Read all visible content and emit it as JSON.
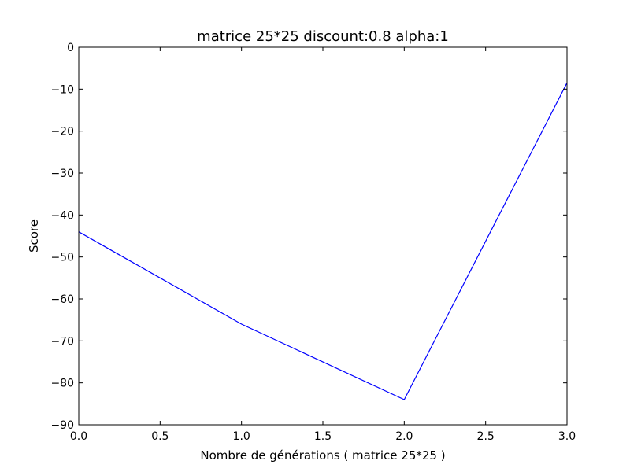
{
  "chart_data": {
    "type": "line",
    "title": "matrice 25*25 discount:0.8 alpha:1",
    "xlabel": "Nombre de générations ( matrice 25*25 )",
    "ylabel": "Score",
    "xlim": [
      0.0,
      3.0
    ],
    "ylim": [
      -90,
      0
    ],
    "x_ticks": [
      0.0,
      0.5,
      1.0,
      1.5,
      2.0,
      2.5,
      3.0
    ],
    "x_tick_labels": [
      "0.0",
      "0.5",
      "1.0",
      "1.5",
      "2.0",
      "2.5",
      "3.0"
    ],
    "y_ticks": [
      0,
      -10,
      -20,
      -30,
      -40,
      -50,
      -60,
      -70,
      -80,
      -90
    ],
    "y_tick_labels": [
      "0",
      "−10",
      "−20",
      "−30",
      "−40",
      "−50",
      "−60",
      "−70",
      "−80",
      "−90"
    ],
    "grid": false,
    "series": [
      {
        "x": [
          0,
          1,
          2,
          3
        ],
        "y": [
          -44,
          -66,
          -84,
          -8.5
        ],
        "color": "#0000ff"
      }
    ]
  }
}
